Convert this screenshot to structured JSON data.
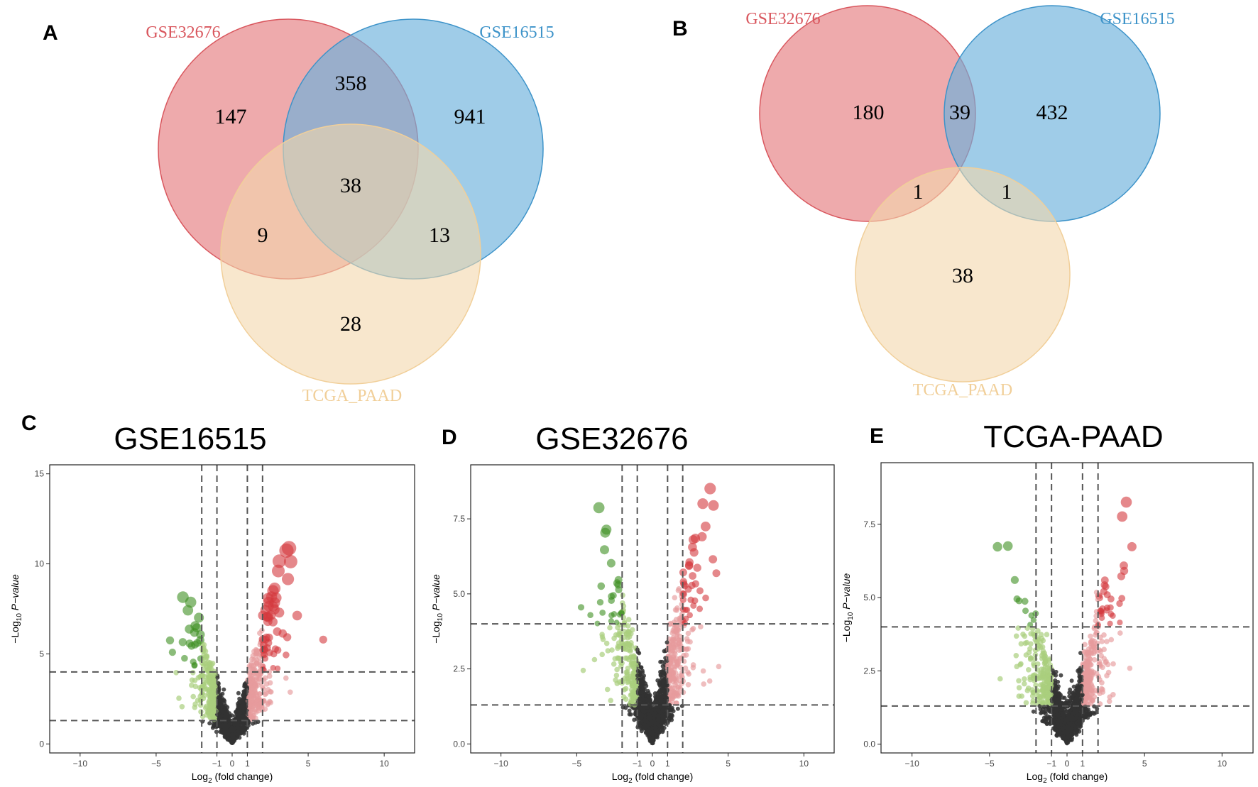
{
  "panel_letters": [
    "A",
    "B",
    "C",
    "D",
    "E"
  ],
  "venn_A": {
    "labels": {
      "set1": "GSE32676",
      "set2": "GSE16515",
      "set3": "TCGA_PAAD"
    },
    "counts": {
      "only1": "147",
      "one_two": "358",
      "only2": "941",
      "all": "38",
      "one_three": "9",
      "two_three": "13",
      "only3": "28"
    }
  },
  "venn_B": {
    "labels": {
      "set1": "GSE32676",
      "set2": "GSE16515",
      "set3": "TCGA_PAAD"
    },
    "counts": {
      "only1": "180",
      "one_two": "39",
      "only2": "432",
      "one_three": "1",
      "two_three": "1",
      "only3": "38"
    }
  },
  "colors": {
    "set1": "#d9575e",
    "set2": "#3d93c9",
    "set3": "#f1cf99",
    "up_strong": "#d3383d",
    "up_weak": "#e79b9c",
    "down_strong": "#3d8f22",
    "down_weak": "#a9cf7d",
    "ns": "#333333"
  },
  "volcano_common": {
    "xlabel_pre": "Log",
    "xlabel_sub": "2",
    "xlabel_post": " (fold change)",
    "ylabel_pre": "−Log",
    "ylabel_sub": "10",
    "ylabel_p": "P",
    "ylabel_post": "−value",
    "xticks": [
      "−10",
      "−5",
      "−1",
      "0",
      "1",
      "5",
      "10"
    ]
  },
  "chart_data": [
    {
      "type": "scatter",
      "title": "GSE16515",
      "xlim": [
        -12,
        12
      ],
      "ylim": [
        -0.5,
        15.5
      ],
      "yticks": [
        "0",
        "5",
        "10",
        "15"
      ],
      "ytick_values": [
        0,
        5,
        10,
        15
      ],
      "vlines": [
        -2,
        -1,
        1,
        2
      ],
      "hlines": [
        1.3,
        4
      ],
      "xrange": [
        -4.6,
        6.3
      ],
      "ymax": 13.8,
      "scale": 1.65,
      "n": 1500,
      "seed": 11
    },
    {
      "type": "scatter",
      "title": "GSE32676",
      "xlim": [
        -12,
        12
      ],
      "ylim": [
        -0.3,
        9.3
      ],
      "yticks": [
        "0.0",
        "2.5",
        "5.0",
        "7.5"
      ],
      "ytick_values": [
        0,
        2.5,
        5,
        7.5
      ],
      "vlines": [
        -2,
        -1,
        1,
        2
      ],
      "hlines": [
        1.3,
        4
      ],
      "xrange": [
        -5.6,
        6.2
      ],
      "ymax": 8.6,
      "scale": 1.35,
      "n": 1500,
      "seed": 23
    },
    {
      "type": "scatter",
      "title": "TCGA-PAAD",
      "xlim": [
        -12,
        12
      ],
      "ylim": [
        -0.3,
        9.6
      ],
      "yticks": [
        "0.0",
        "2.5",
        "5.0",
        "7.5"
      ],
      "ytick_values": [
        0,
        2.5,
        5,
        7.5
      ],
      "vlines": [
        -2,
        -1,
        1,
        2
      ],
      "hlines": [
        1.3,
        4
      ],
      "xrange": [
        -7.1,
        6.9
      ],
      "ymax": 9.0,
      "scale": 1.1,
      "n": 1500,
      "seed": 37
    }
  ]
}
